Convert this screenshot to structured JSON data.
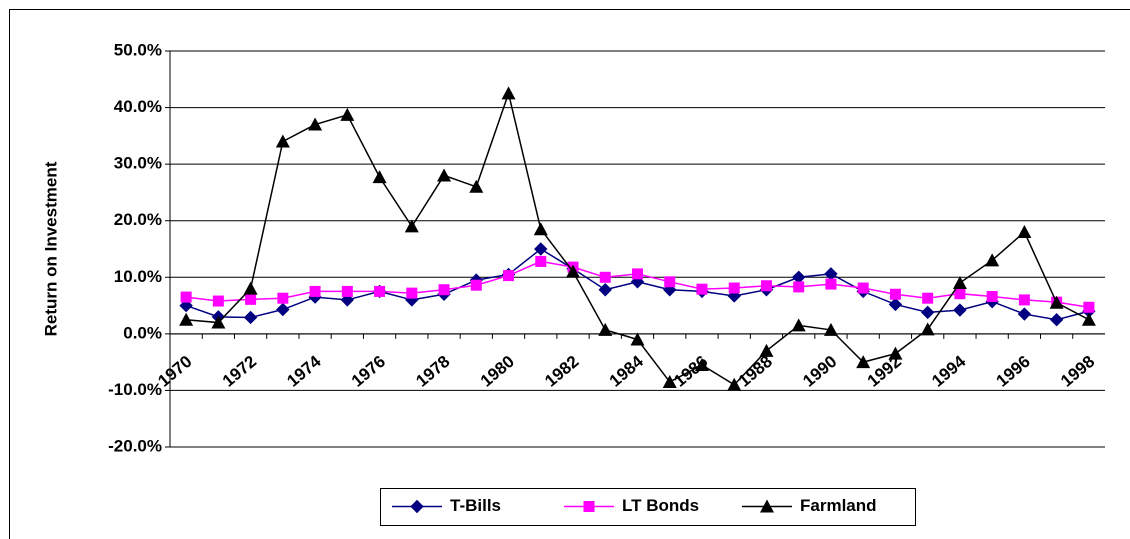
{
  "chart_data": {
    "type": "line",
    "y_axis_label": "Return on Investment",
    "categories": [
      1970,
      null,
      1972,
      null,
      1974,
      null,
      1976,
      null,
      1978,
      null,
      1980,
      null,
      1982,
      null,
      1984,
      null,
      1986,
      null,
      1988,
      null,
      1990,
      null,
      1992,
      null,
      1994,
      null,
      1996,
      null,
      1998
    ],
    "series": [
      {
        "name": "T-Bills",
        "color": "#000080",
        "marker": "diamond",
        "values": [
          5.0,
          3.0,
          2.9,
          4.3,
          6.5,
          6.0,
          7.5,
          6.0,
          7.0,
          9.5,
          10.5,
          15.0,
          11.5,
          7.8,
          9.2,
          7.8,
          7.5,
          6.7,
          7.8,
          10.0,
          10.6,
          7.5,
          5.2,
          3.8,
          4.2,
          5.7,
          3.5,
          2.5,
          4.0
        ]
      },
      {
        "name": "LT Bonds",
        "color": "#ff00ff",
        "marker": "square",
        "values": [
          6.5,
          5.8,
          6.1,
          6.3,
          7.5,
          7.5,
          7.5,
          7.2,
          7.8,
          8.6,
          10.3,
          12.8,
          11.8,
          10.0,
          10.6,
          9.2,
          7.9,
          8.1,
          8.5,
          8.3,
          8.8,
          8.1,
          7.0,
          6.3,
          7.1,
          6.6,
          6.0,
          5.6,
          4.7
        ]
      },
      {
        "name": "Farmland",
        "color": "#000000",
        "marker": "triangle",
        "values": [
          2.5,
          2.0,
          8.0,
          34.0,
          37.0,
          38.7,
          27.7,
          19.0,
          28.0,
          26.0,
          42.5,
          18.5,
          11.0,
          0.7,
          -1.0,
          -8.5,
          -5.5,
          -9.0,
          -3.0,
          1.5,
          0.7,
          -5.0,
          -3.5,
          0.8,
          9.0,
          13.0,
          18.0,
          5.5,
          2.5
        ]
      }
    ],
    "ylim": [
      -20,
      50
    ],
    "yticks": [
      {
        "value": -20,
        "label": "-20.0%"
      },
      {
        "value": -10,
        "label": "-10.0%"
      },
      {
        "value": 0,
        "label": "0.0%"
      },
      {
        "value": 10,
        "label": "10.0%"
      },
      {
        "value": 20,
        "label": "20.0%"
      },
      {
        "value": 30,
        "label": "30.0%"
      },
      {
        "value": 40,
        "label": "40.0%"
      },
      {
        "value": 50,
        "label": "50.0%"
      }
    ],
    "grid": true,
    "legend": "bottom"
  }
}
